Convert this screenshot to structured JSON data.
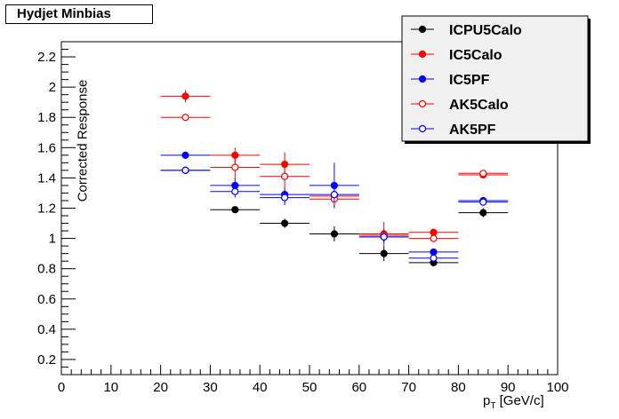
{
  "chart_data": {
    "type": "scatter",
    "title": "Hydjet Minbias",
    "xlabel_main": "p",
    "xlabel_sub": "T",
    "xlabel_unit": " [GeV/c]",
    "ylabel": "Corrected Response",
    "xlim": [
      0,
      100
    ],
    "ylim": [
      0.1,
      2.3
    ],
    "x_ticks": [
      "0",
      "10",
      "20",
      "30",
      "40",
      "50",
      "60",
      "70",
      "80",
      "90",
      "100"
    ],
    "y_ticks": [
      "0.2",
      "0.4",
      "0.6",
      "0.8",
      "1",
      "1.2",
      "1.4",
      "1.6",
      "1.8",
      "2",
      "2.2"
    ],
    "grid": false,
    "legend_position": "top-right",
    "series": [
      {
        "name": "ICPU5Calo",
        "color": "#000000",
        "marker": "filled-circle",
        "points": [
          {
            "x": 25,
            "xerr": 5,
            "y": 1.45,
            "yerr": 0.02
          },
          {
            "x": 35,
            "xerr": 5,
            "y": 1.19,
            "yerr": 0.01
          },
          {
            "x": 45,
            "xerr": 5,
            "y": 1.1,
            "yerr": 0.03
          },
          {
            "x": 55,
            "xerr": 5,
            "y": 1.03,
            "yerr": 0.05
          },
          {
            "x": 65,
            "xerr": 5,
            "y": 0.9,
            "yerr": 0.05
          },
          {
            "x": 75,
            "xerr": 5,
            "y": 0.84,
            "yerr": 0.02
          },
          {
            "x": 85,
            "xerr": 5,
            "y": 1.17,
            "yerr": 0.03
          }
        ]
      },
      {
        "name": "IC5Calo",
        "color": "#ff0000",
        "marker": "filled-circle",
        "points": [
          {
            "x": 25,
            "xerr": 5,
            "y": 1.94,
            "yerr": 0.04
          },
          {
            "x": 35,
            "xerr": 5,
            "y": 1.55,
            "yerr": 0.05
          },
          {
            "x": 45,
            "xerr": 5,
            "y": 1.49,
            "yerr": 0.08
          },
          {
            "x": 55,
            "xerr": 5,
            "y": 1.28,
            "yerr": 0.04
          },
          {
            "x": 65,
            "xerr": 5,
            "y": 1.03,
            "yerr": 0.08
          },
          {
            "x": 75,
            "xerr": 5,
            "y": 1.04,
            "yerr": 0.02
          },
          {
            "x": 85,
            "xerr": 5,
            "y": 1.42,
            "yerr": 0.02
          }
        ]
      },
      {
        "name": "IC5PF",
        "color": "#0000ff",
        "marker": "filled-circle",
        "points": [
          {
            "x": 25,
            "xerr": 5,
            "y": 1.55,
            "yerr": 0.02
          },
          {
            "x": 35,
            "xerr": 5,
            "y": 1.35,
            "yerr": 0.05
          },
          {
            "x": 45,
            "xerr": 5,
            "y": 1.29,
            "yerr": 0.05
          },
          {
            "x": 55,
            "xerr": 5,
            "y": 1.35,
            "yerr": 0.15
          },
          {
            "x": 65,
            "xerr": 5,
            "y": 1.01,
            "yerr": 0.03
          },
          {
            "x": 75,
            "xerr": 5,
            "y": 0.91,
            "yerr": 0.02
          },
          {
            "x": 85,
            "xerr": 5,
            "y": 1.25,
            "yerr": 0.02
          }
        ]
      },
      {
        "name": "AK5Calo",
        "color": "#ff0000",
        "marker": "open-circle",
        "points": [
          {
            "x": 25,
            "xerr": 5,
            "y": 1.8,
            "yerr": 0.01
          },
          {
            "x": 35,
            "xerr": 5,
            "y": 1.47,
            "yerr": 0.08
          },
          {
            "x": 45,
            "xerr": 5,
            "y": 1.41,
            "yerr": 0.08
          },
          {
            "x": 55,
            "xerr": 5,
            "y": 1.26,
            "yerr": 0.04
          },
          {
            "x": 65,
            "xerr": 5,
            "y": 1.02,
            "yerr": 0.04
          },
          {
            "x": 75,
            "xerr": 5,
            "y": 1.0,
            "yerr": 0.02
          },
          {
            "x": 85,
            "xerr": 5,
            "y": 1.43,
            "yerr": 0.02
          }
        ]
      },
      {
        "name": "AK5PF",
        "color": "#0000ff",
        "marker": "open-circle",
        "points": [
          {
            "x": 25,
            "xerr": 5,
            "y": 1.45,
            "yerr": 0.02
          },
          {
            "x": 35,
            "xerr": 5,
            "y": 1.31,
            "yerr": 0.04
          },
          {
            "x": 45,
            "xerr": 5,
            "y": 1.27,
            "yerr": 0.05
          },
          {
            "x": 55,
            "xerr": 5,
            "y": 1.29,
            "yerr": 0.05
          },
          {
            "x": 65,
            "xerr": 5,
            "y": 1.01,
            "yerr": 0.04
          },
          {
            "x": 75,
            "xerr": 5,
            "y": 0.87,
            "yerr": 0.03
          },
          {
            "x": 85,
            "xerr": 5,
            "y": 1.24,
            "yerr": 0.02
          }
        ]
      }
    ]
  }
}
